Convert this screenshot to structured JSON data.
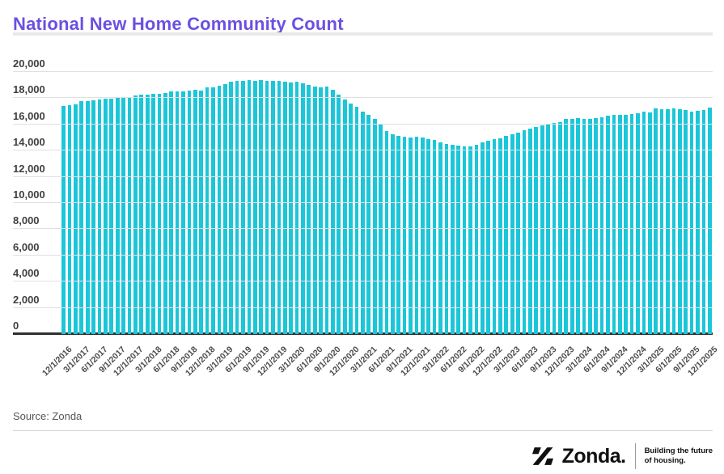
{
  "header": {
    "title": "National New Home Community Count"
  },
  "source": {
    "label": "Source: Zonda"
  },
  "footer": {
    "brand": "Zonda.",
    "tagline_line1": "Building the future",
    "tagline_line2": "of housing."
  },
  "colors": {
    "bar": "#1bc6d9",
    "title": "#6b50e2",
    "grid": "#e0e0e0",
    "axis_line": "#303030",
    "y_label": "#3f3f3f",
    "x_label": "#4a4a4a"
  },
  "chart_data": {
    "type": "bar",
    "title": "National New Home Community Count",
    "xlabel": "",
    "ylabel": "",
    "ylim": [
      0,
      20000
    ],
    "ytick_step": 2000,
    "grid": true,
    "legend": false,
    "x_tick_every": 3,
    "x": [
      "12/1/2016",
      "1/1/2017",
      "2/1/2017",
      "3/1/2017",
      "4/1/2017",
      "5/1/2017",
      "6/1/2017",
      "7/1/2017",
      "8/1/2017",
      "9/1/2017",
      "10/1/2017",
      "11/1/2017",
      "12/1/2017",
      "1/1/2018",
      "2/1/2018",
      "3/1/2018",
      "4/1/2018",
      "5/1/2018",
      "6/1/2018",
      "7/1/2018",
      "8/1/2018",
      "9/1/2018",
      "10/1/2018",
      "11/1/2018",
      "12/1/2018",
      "1/1/2019",
      "2/1/2019",
      "3/1/2019",
      "4/1/2019",
      "5/1/2019",
      "6/1/2019",
      "7/1/2019",
      "8/1/2019",
      "9/1/2019",
      "10/1/2019",
      "11/1/2019",
      "12/1/2019",
      "1/1/2020",
      "2/1/2020",
      "3/1/2020",
      "4/1/2020",
      "5/1/2020",
      "6/1/2020",
      "7/1/2020",
      "8/1/2020",
      "9/1/2020",
      "10/1/2020",
      "11/1/2020",
      "12/1/2020",
      "1/1/2021",
      "2/1/2021",
      "3/1/2021",
      "4/1/2021",
      "5/1/2021",
      "6/1/2021",
      "7/1/2021",
      "8/1/2021",
      "9/1/2021",
      "10/1/2021",
      "11/1/2021",
      "12/1/2021",
      "1/1/2022",
      "2/1/2022",
      "3/1/2022",
      "4/1/2022",
      "5/1/2022",
      "6/1/2022",
      "7/1/2022",
      "8/1/2022",
      "9/1/2022",
      "10/1/2022",
      "11/1/2022",
      "12/1/2022",
      "1/1/2023",
      "2/1/2023",
      "3/1/2023",
      "4/1/2023",
      "5/1/2023",
      "6/1/2023",
      "7/1/2023",
      "8/1/2023",
      "9/1/2023",
      "10/1/2023",
      "11/1/2023",
      "12/1/2023",
      "1/1/2024",
      "2/1/2024",
      "3/1/2024",
      "4/1/2024",
      "5/1/2024",
      "6/1/2024",
      "7/1/2024",
      "8/1/2024",
      "9/1/2024",
      "10/1/2024",
      "11/1/2024",
      "12/1/2024",
      "1/1/2025",
      "2/1/2025",
      "3/1/2025",
      "4/1/2025",
      "5/1/2025",
      "6/1/2025",
      "7/1/2025",
      "8/1/2025",
      "9/1/2025",
      "10/1/2025",
      "11/1/2025",
      "12/1/2025"
    ],
    "values": [
      17400,
      17450,
      17550,
      17750,
      17800,
      17850,
      17900,
      17950,
      17950,
      18000,
      18050,
      18100,
      18200,
      18250,
      18300,
      18350,
      18350,
      18400,
      18500,
      18550,
      18500,
      18600,
      18650,
      18600,
      18800,
      18850,
      18950,
      19100,
      19250,
      19300,
      19350,
      19400,
      19350,
      19400,
      19350,
      19300,
      19300,
      19250,
      19200,
      19250,
      19150,
      19000,
      18900,
      18850,
      18900,
      18650,
      18300,
      17900,
      17600,
      17350,
      17000,
      16750,
      16450,
      16050,
      15500,
      15250,
      15100,
      15050,
      15000,
      15050,
      15000,
      14900,
      14800,
      14650,
      14500,
      14450,
      14380,
      14320,
      14340,
      14450,
      14600,
      14750,
      14880,
      14950,
      15100,
      15250,
      15400,
      15550,
      15700,
      15830,
      15930,
      16050,
      16100,
      16150,
      16400,
      16450,
      16500,
      16400,
      16450,
      16500,
      16550,
      16650,
      16700,
      16750,
      16700,
      16800,
      16850,
      16950,
      16900,
      17200,
      17150,
      17150,
      17200,
      17150,
      17100,
      17000,
      17050,
      17100,
      17300
    ]
  }
}
